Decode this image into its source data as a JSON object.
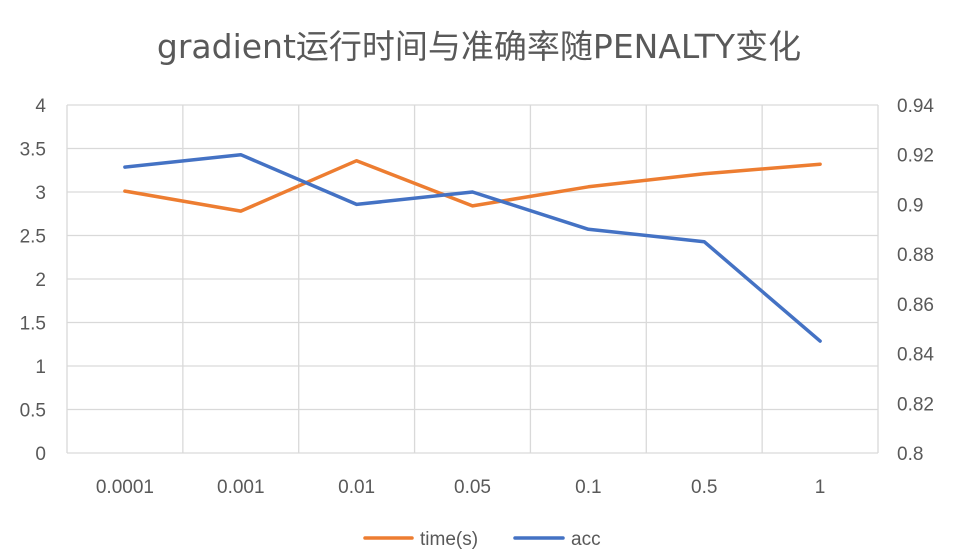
{
  "chart_data": {
    "type": "line",
    "title": "gradient运行时间与准确率随PENALTY变化",
    "categories": [
      "0.0001",
      "0.001",
      "0.01",
      "0.05",
      "0.1",
      "0.5",
      "1"
    ],
    "series": [
      {
        "name": "time(s)",
        "axis": "left",
        "color": "#ED7D31",
        "values": [
          3.01,
          2.78,
          3.36,
          2.84,
          3.06,
          3.21,
          3.32
        ]
      },
      {
        "name": "acc",
        "axis": "right",
        "color": "#4472C4",
        "values": [
          0.915,
          0.92,
          0.9,
          0.905,
          0.89,
          0.885,
          0.845
        ]
      }
    ],
    "y_left": {
      "min": 0,
      "max": 4,
      "ticks": [
        "0",
        "0.5",
        "1",
        "1.5",
        "2",
        "2.5",
        "3",
        "3.5",
        "4"
      ]
    },
    "y_right": {
      "min": 0.8,
      "max": 0.94,
      "ticks": [
        "0.8",
        "0.82",
        "0.84",
        "0.86",
        "0.88",
        "0.9",
        "0.92",
        "0.94"
      ]
    },
    "grid": true,
    "legend": "bottom"
  }
}
